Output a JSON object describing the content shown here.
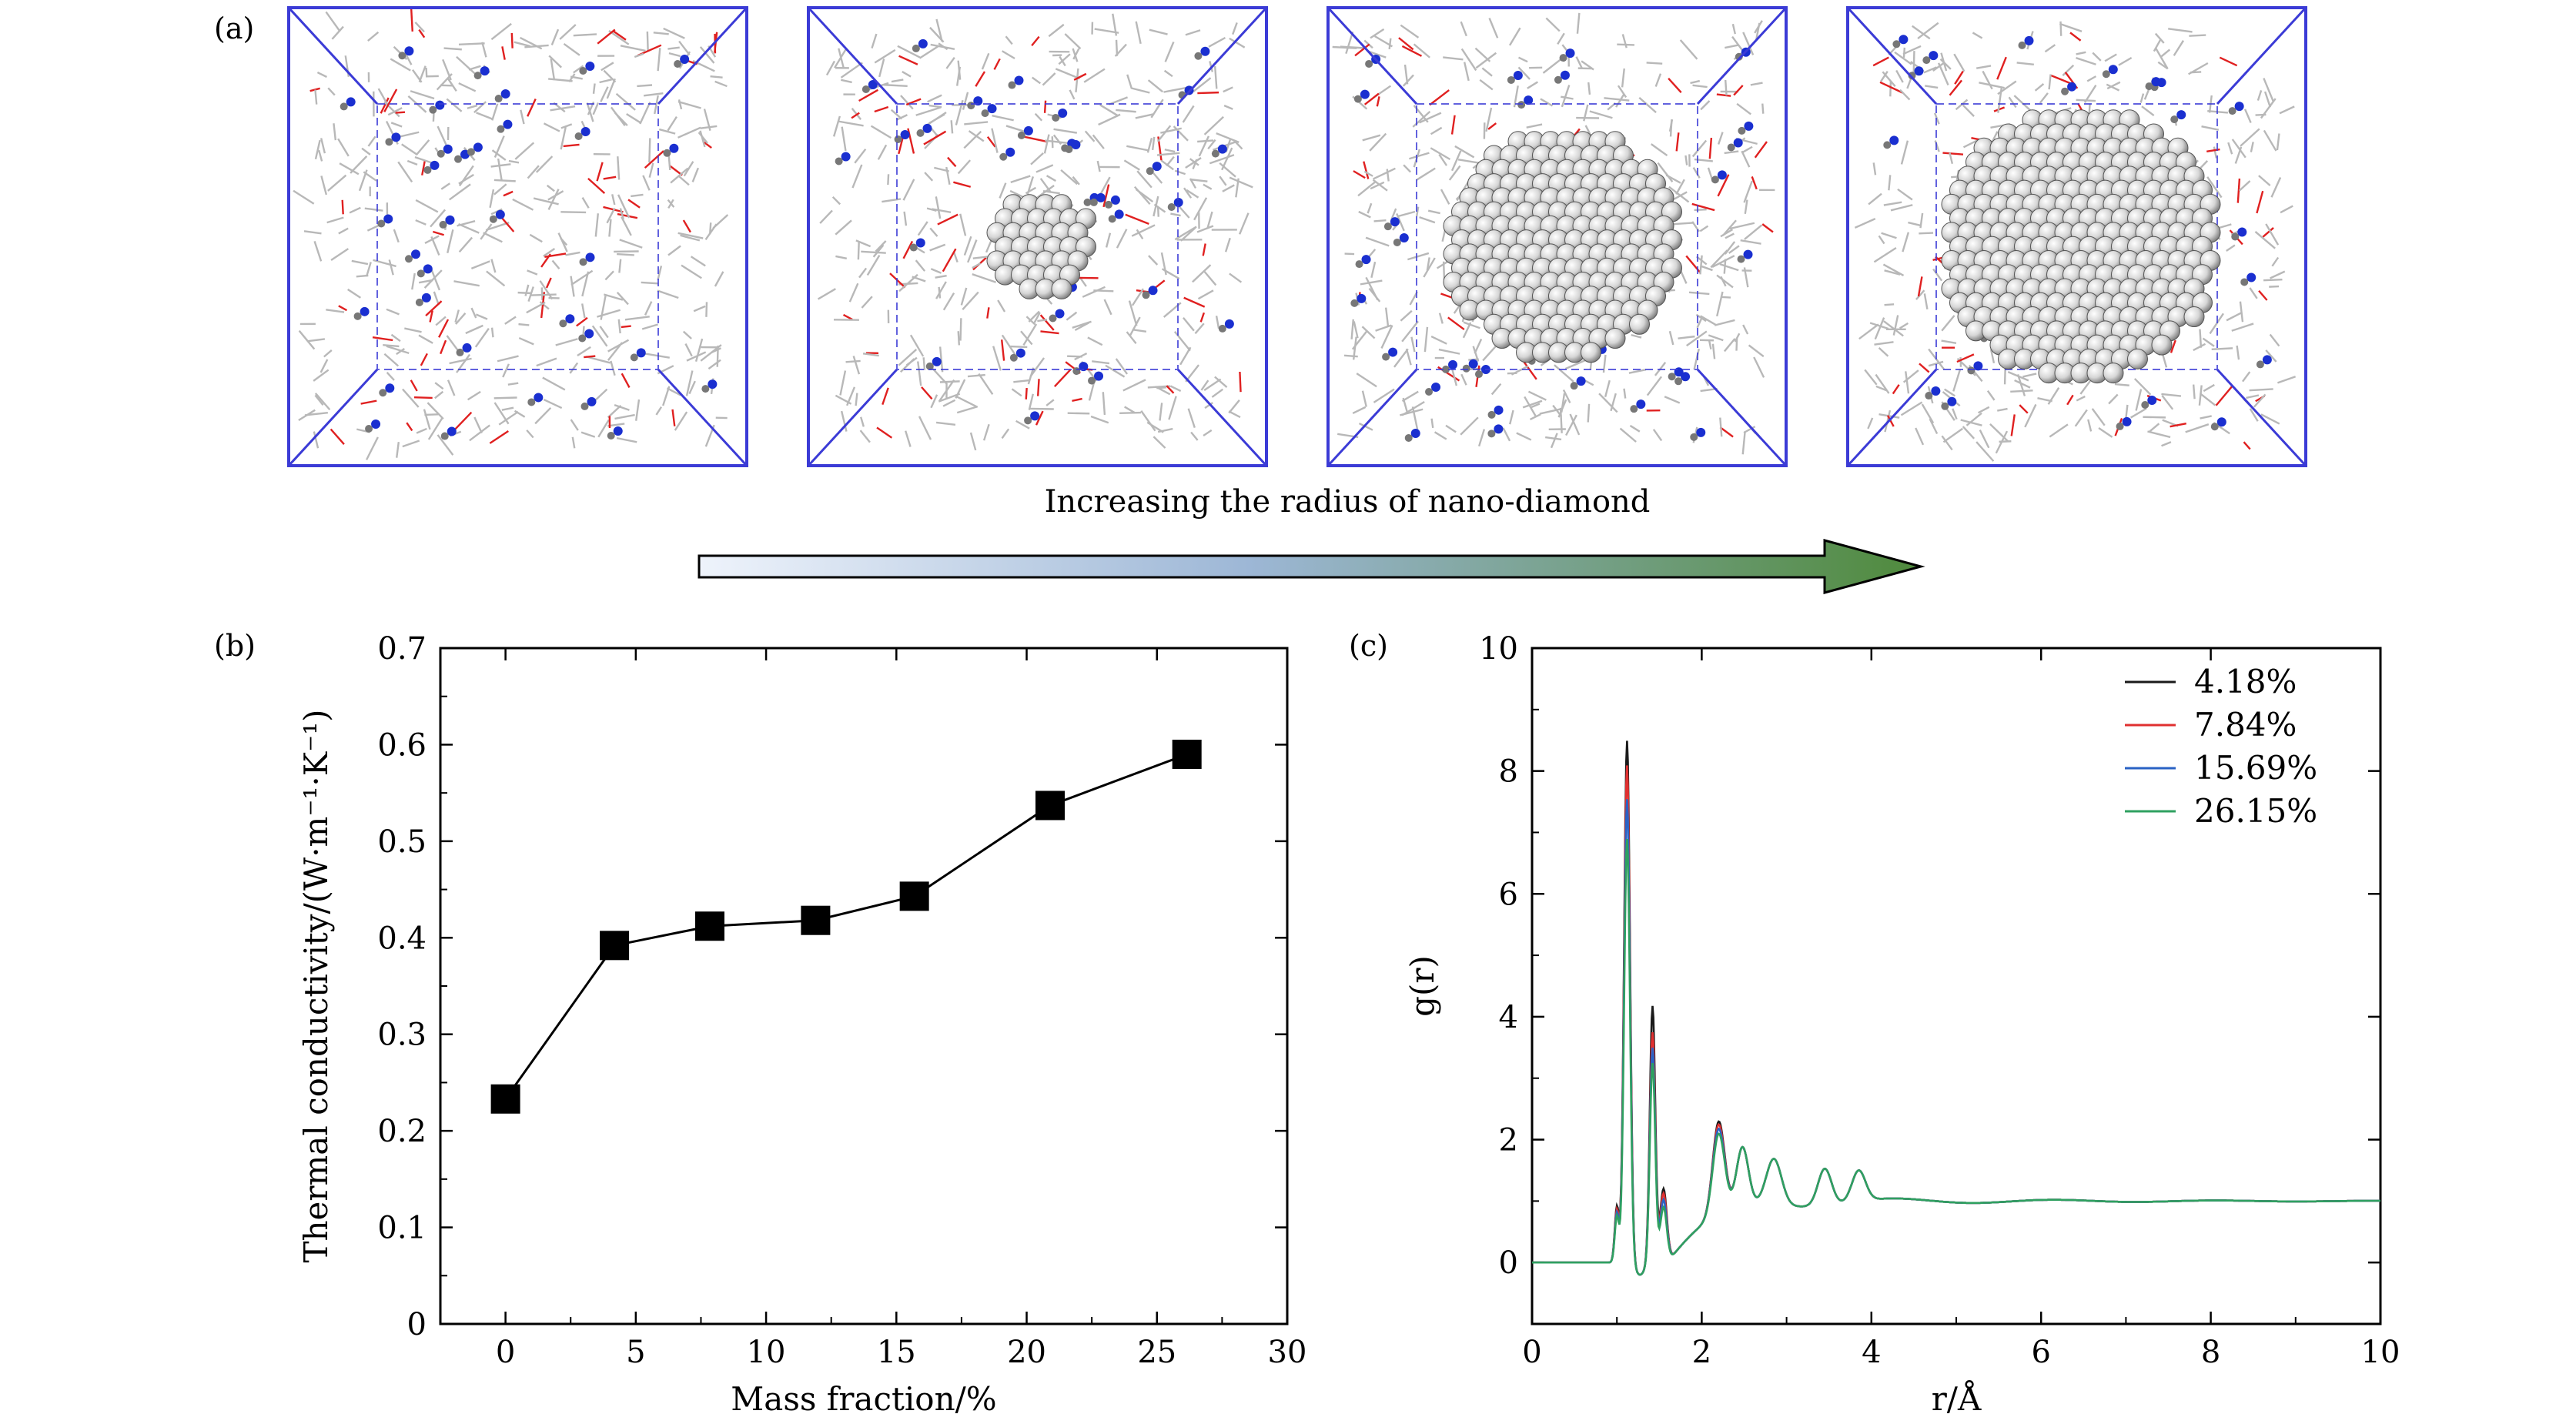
{
  "panel_labels": {
    "a": "(a)",
    "b": "(b)",
    "c": "(c)"
  },
  "caption": "Increasing the radius of nano-diamond",
  "colors": {
    "box_edge": "#3b3bd6",
    "arrow_start": "#eef3fb",
    "arrow_mid": "#9db7d6",
    "arrow_end": "#4f8a3c",
    "atom_sphere": "#d9d9d9",
    "nitrogen": "#1a2fd0",
    "oxygen": "#e02020",
    "bond_gray": "#b8b8b8"
  },
  "simulation_boxes": [
    {
      "name": "box-no-diamond",
      "diamond_radius_rank": 0
    },
    {
      "name": "box-small-diamond",
      "diamond_radius_rank": 1
    },
    {
      "name": "box-medium-diamond",
      "diamond_radius_rank": 2
    },
    {
      "name": "box-large-diamond",
      "diamond_radius_rank": 3
    }
  ],
  "chart_data": [
    {
      "type": "line",
      "panel": "(b)",
      "title": "",
      "xlabel": "Mass fraction/%",
      "ylabel": "Thermal conductivity/(W·m⁻¹·K⁻¹)",
      "xlim": [
        -2.5,
        30
      ],
      "ylim": [
        0,
        0.7
      ],
      "xticks": [
        0,
        5,
        10,
        15,
        20,
        25,
        30
      ],
      "yticks": [
        0,
        0.1,
        0.2,
        0.3,
        0.4,
        0.5,
        0.6,
        0.7
      ],
      "xtick_labels": [
        "0",
        "5",
        "10",
        "15",
        "20",
        "25",
        "30"
      ],
      "ytick_labels": [
        "0",
        "0.1",
        "0.2",
        "0.3",
        "0.4",
        "0.5",
        "0.6",
        "0.7"
      ],
      "marker": "square",
      "color": "#000000",
      "x": [
        0,
        4.18,
        7.84,
        11.9,
        15.69,
        20.9,
        26.15
      ],
      "y": [
        0.233,
        0.392,
        0.412,
        0.418,
        0.443,
        0.537,
        0.59
      ],
      "grid": false,
      "legend": null
    },
    {
      "type": "line",
      "panel": "(c)",
      "title": "",
      "xlabel": "r/Å",
      "ylabel": "g(r)",
      "xlim": [
        0,
        10
      ],
      "ylim": [
        -1,
        10
      ],
      "xticks": [
        0,
        2,
        4,
        6,
        8,
        10
      ],
      "yticks": [
        0,
        2,
        4,
        6,
        8,
        10
      ],
      "xtick_labels": [
        "0",
        "2",
        "4",
        "6",
        "8",
        "10"
      ],
      "ytick_labels": [
        "0",
        "2",
        "4",
        "6",
        "8",
        "10"
      ],
      "legend_position": "top-right",
      "grid": false,
      "series": [
        {
          "name": "4.18%",
          "color": "#1a1a1a",
          "peak1": 8.5,
          "peak2": 4.18,
          "peak0": 0.9
        },
        {
          "name": "7.84%",
          "color": "#e03030",
          "peak1": 8.1,
          "peak2": 3.75,
          "peak0": 0.85
        },
        {
          "name": "15.69%",
          "color": "#2a62c4",
          "peak1": 7.55,
          "peak2": 3.5,
          "peak0": 0.8
        },
        {
          "name": "26.15%",
          "color": "#2fa060",
          "peak1": 6.9,
          "peak2": 3.25,
          "peak0": 0.75
        }
      ]
    }
  ]
}
